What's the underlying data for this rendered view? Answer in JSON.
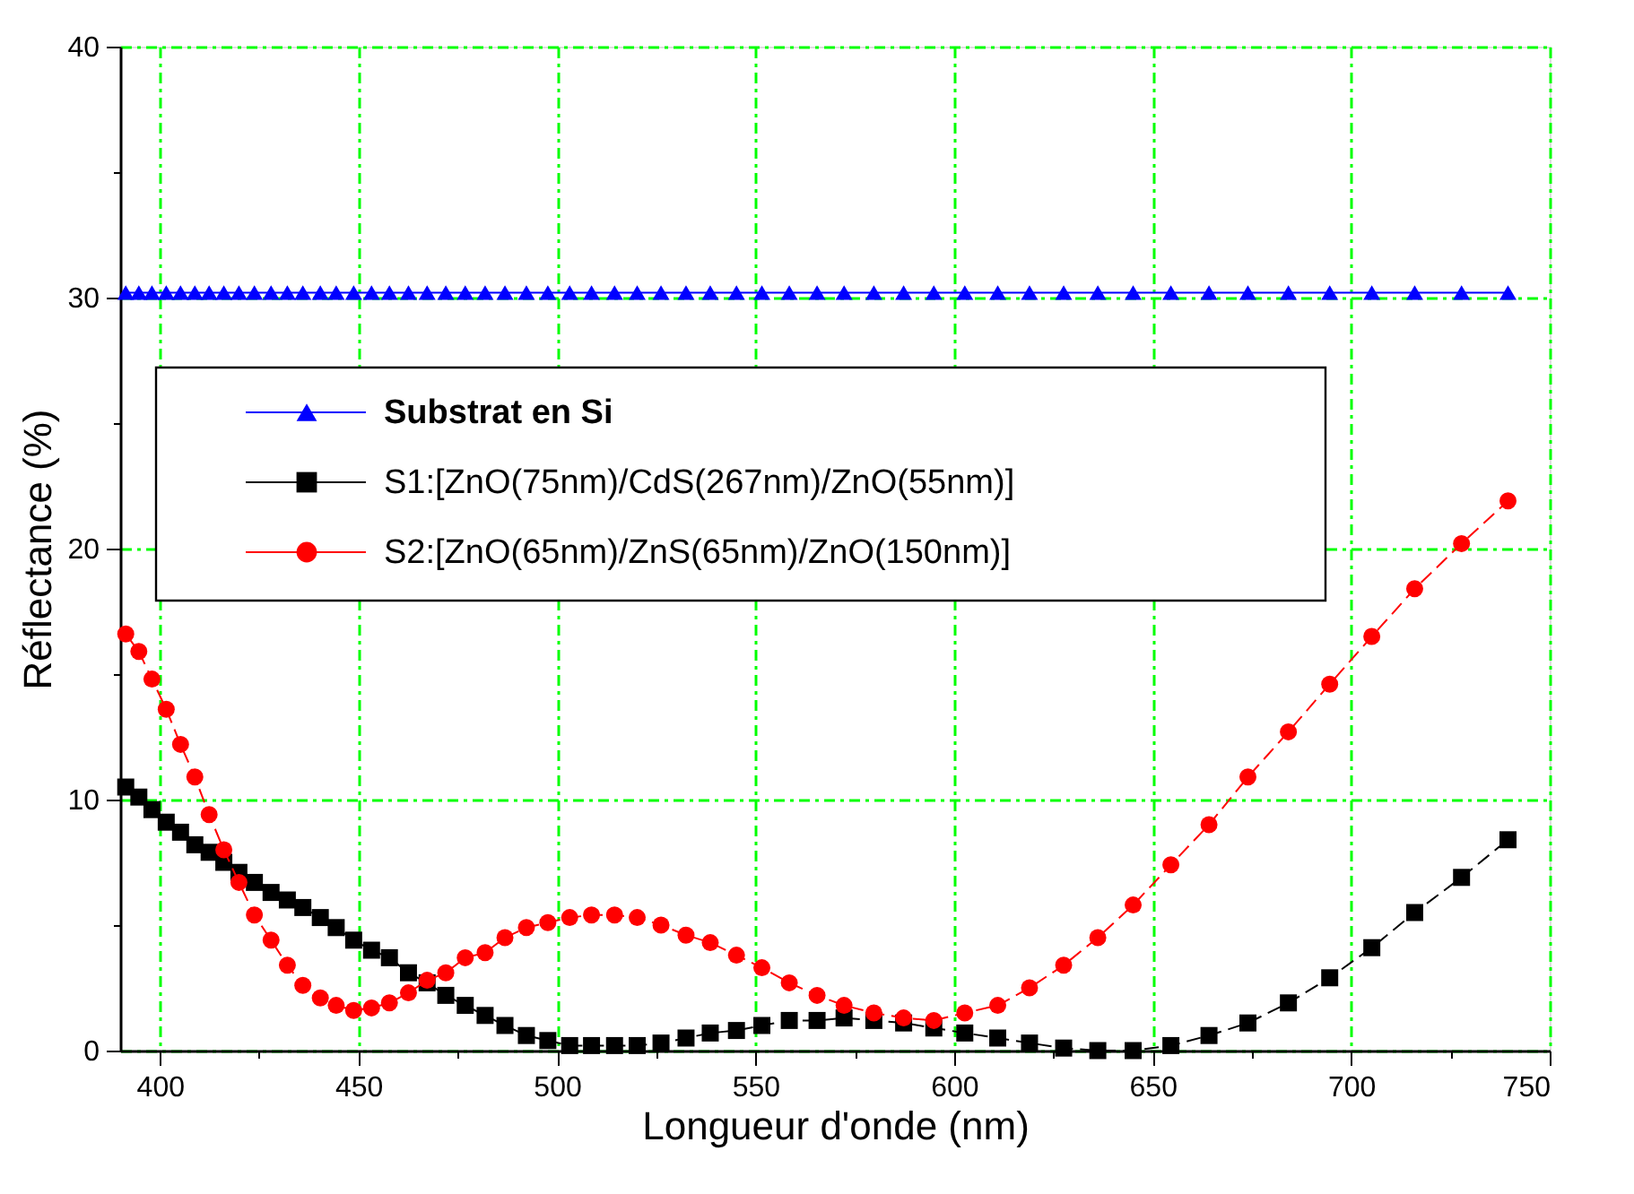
{
  "chart_data": {
    "type": "line",
    "xlabel": "Longueur d'onde (nm)",
    "ylabel": "Réflectance (%)",
    "xlim": [
      390,
      750
    ],
    "ylim": [
      0,
      40
    ],
    "xticks": [
      400,
      {
        "value": 425,
        "label": null
      },
      450,
      {
        "value": 475,
        "label": null
      },
      500,
      {
        "value": 525,
        "label": null
      },
      550,
      {
        "value": 575,
        "label": null
      },
      600,
      {
        "value": 625,
        "label": null
      },
      650,
      {
        "value": 675,
        "label": null
      },
      700,
      {
        "value": 725,
        "label": null
      },
      750
    ],
    "yticks": [
      0,
      {
        "value": 5,
        "label": null
      },
      10,
      {
        "value": 15,
        "label": null
      },
      20,
      {
        "value": 25,
        "label": null
      },
      30,
      {
        "value": 35,
        "label": null
      },
      40
    ],
    "grid": true,
    "legend": "top left",
    "series": [
      {
        "name": "Substrat en Si",
        "color": "#0000ff",
        "marker": "triangle",
        "line_style": "solid",
        "x": [
          391.4,
          394.7,
          398.0,
          401.6,
          405.2,
          408.8,
          412.4,
          416.1,
          419.9,
          423.8,
          428.0,
          432.1,
          436.0,
          440.4,
          444.4,
          448.8,
          453.3,
          457.8,
          462.6,
          467.3,
          472.0,
          476.9,
          481.9,
          486.9,
          492.3,
          497.7,
          503.2,
          508.7,
          514.5,
          520.2,
          526.2,
          532.5,
          538.6,
          545.2,
          551.6,
          558.5,
          565.5,
          572.3,
          579.8,
          587.3,
          594.9,
          602.7,
          611.0,
          619.0,
          627.6,
          636.2,
          645.1,
          654.6,
          664.2,
          674.0,
          684.2,
          694.6,
          705.2,
          716.0,
          727.8,
          739.5
        ],
        "values": [
          30.2,
          30.2,
          30.2,
          30.2,
          30.2,
          30.2,
          30.2,
          30.2,
          30.2,
          30.2,
          30.2,
          30.2,
          30.2,
          30.2,
          30.2,
          30.2,
          30.2,
          30.2,
          30.2,
          30.2,
          30.2,
          30.2,
          30.2,
          30.2,
          30.2,
          30.2,
          30.2,
          30.2,
          30.2,
          30.2,
          30.2,
          30.2,
          30.2,
          30.2,
          30.2,
          30.2,
          30.2,
          30.2,
          30.2,
          30.2,
          30.2,
          30.2,
          30.2,
          30.2,
          30.2,
          30.2,
          30.2,
          30.2,
          30.2,
          30.2,
          30.2,
          30.2,
          30.2,
          30.2,
          30.2,
          30.2
        ]
      },
      {
        "name": "S1:[ZnO(75nm)/CdS(267nm)/ZnO(55nm)]",
        "color": "#000000",
        "marker": "square",
        "line_style": "dashed",
        "x": [
          391.4,
          394.7,
          398.0,
          401.6,
          405.2,
          408.8,
          412.4,
          416.1,
          419.9,
          423.8,
          428.0,
          432.1,
          436.0,
          440.4,
          444.4,
          448.8,
          453.3,
          457.8,
          462.6,
          467.3,
          472.0,
          476.9,
          481.9,
          486.9,
          492.3,
          497.7,
          503.2,
          508.7,
          514.5,
          520.2,
          526.2,
          532.5,
          538.6,
          545.2,
          551.6,
          558.5,
          565.5,
          572.3,
          579.8,
          587.3,
          594.9,
          602.7,
          611.0,
          619.0,
          627.6,
          636.2,
          645.1,
          654.6,
          664.2,
          674.0,
          684.2,
          694.6,
          705.2,
          716.0,
          727.8,
          739.5
        ],
        "values": [
          10.5,
          10.1,
          9.6,
          9.1,
          8.7,
          8.2,
          7.9,
          7.5,
          7.1,
          6.7,
          6.3,
          6.0,
          5.7,
          5.3,
          4.9,
          4.4,
          4.0,
          3.7,
          3.1,
          2.7,
          2.2,
          1.8,
          1.4,
          1.0,
          0.6,
          0.4,
          0.2,
          0.2,
          0.2,
          0.2,
          0.3,
          0.5,
          0.7,
          0.8,
          1.0,
          1.2,
          1.2,
          1.3,
          1.2,
          1.1,
          0.9,
          0.7,
          0.5,
          0.3,
          0.1,
          0.0,
          0.0,
          0.2,
          0.6,
          1.1,
          1.9,
          2.9,
          4.1,
          5.5,
          6.9,
          8.4
        ]
      },
      {
        "name": "S2:[ZnO(65nm)/ZnS(65nm)/ZnO(150nm)]",
        "color": "#ff0000",
        "marker": "circle",
        "line_style": "dashed",
        "x": [
          391.4,
          394.7,
          398.0,
          401.6,
          405.2,
          408.8,
          412.4,
          416.1,
          419.9,
          423.8,
          428.0,
          432.1,
          436.0,
          440.4,
          444.4,
          448.8,
          453.3,
          457.8,
          462.6,
          467.3,
          472.0,
          476.9,
          481.9,
          486.9,
          492.3,
          497.7,
          503.2,
          508.7,
          514.5,
          520.2,
          526.2,
          532.5,
          538.6,
          545.2,
          551.6,
          558.5,
          565.5,
          572.3,
          579.8,
          587.3,
          594.9,
          602.7,
          611.0,
          619.0,
          627.6,
          636.2,
          645.1,
          654.6,
          664.2,
          674.0,
          684.2,
          694.6,
          705.2,
          716.0,
          727.8,
          739.5
        ],
        "values": [
          16.6,
          15.9,
          14.8,
          13.6,
          12.2,
          10.9,
          9.4,
          8.0,
          6.7,
          5.4,
          4.4,
          3.4,
          2.6,
          2.1,
          1.8,
          1.6,
          1.7,
          1.9,
          2.3,
          2.8,
          3.1,
          3.7,
          3.9,
          4.5,
          4.9,
          5.1,
          5.3,
          5.4,
          5.4,
          5.3,
          5.0,
          4.6,
          4.3,
          3.8,
          3.3,
          2.7,
          2.2,
          1.8,
          1.5,
          1.3,
          1.2,
          1.5,
          1.8,
          2.5,
          3.4,
          4.5,
          5.8,
          7.4,
          9.0,
          10.9,
          12.7,
          14.6,
          16.5,
          18.4,
          20.2,
          21.9
        ]
      }
    ]
  }
}
